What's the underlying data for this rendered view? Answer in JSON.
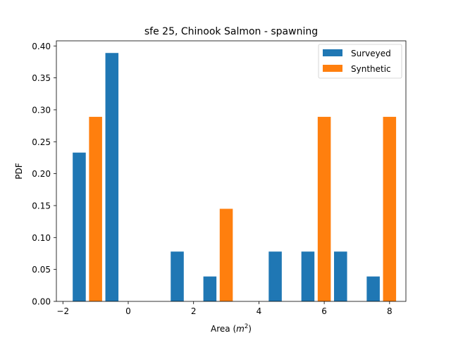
{
  "chart_data": {
    "type": "bar",
    "title": "sfe 25, Chinook Salmon - spawning",
    "xlabel": "Area (m²)",
    "xlabel_main": "Area (",
    "xlabel_unit": "m",
    "xlabel_exp": "2",
    "xlabel_close": ")",
    "ylabel": "PDF",
    "xlim": [
      -2.2,
      8.5
    ],
    "ylim": [
      0.0,
      0.408
    ],
    "xticks": [
      -2,
      0,
      2,
      4,
      6,
      8
    ],
    "xtick_labels": [
      "−2",
      "0",
      "2",
      "4",
      "6",
      "8"
    ],
    "yticks": [
      0.0,
      0.05,
      0.1,
      0.15,
      0.2,
      0.25,
      0.3,
      0.35,
      0.4
    ],
    "ytick_labels": [
      "0.00",
      "0.05",
      "0.10",
      "0.15",
      "0.20",
      "0.25",
      "0.30",
      "0.35",
      "0.40"
    ],
    "grid": false,
    "legend_position": "top-right",
    "series": [
      {
        "name": "Surveyed",
        "color": "#1f77b4",
        "points": [
          {
            "x": -1.5,
            "y": 0.233
          },
          {
            "x": -0.5,
            "y": 0.389
          },
          {
            "x": 1.5,
            "y": 0.078
          },
          {
            "x": 2.5,
            "y": 0.039
          },
          {
            "x": 4.5,
            "y": 0.078
          },
          {
            "x": 5.5,
            "y": 0.078
          },
          {
            "x": 6.5,
            "y": 0.078
          },
          {
            "x": 7.5,
            "y": 0.039
          }
        ]
      },
      {
        "name": "Synthetic",
        "color": "#ff7f0e",
        "points": [
          {
            "x": -1.0,
            "y": 0.289
          },
          {
            "x": 3.0,
            "y": 0.145
          },
          {
            "x": 6.0,
            "y": 0.289
          },
          {
            "x": 8.0,
            "y": 0.289
          }
        ]
      }
    ],
    "bar_width": 0.4
  }
}
